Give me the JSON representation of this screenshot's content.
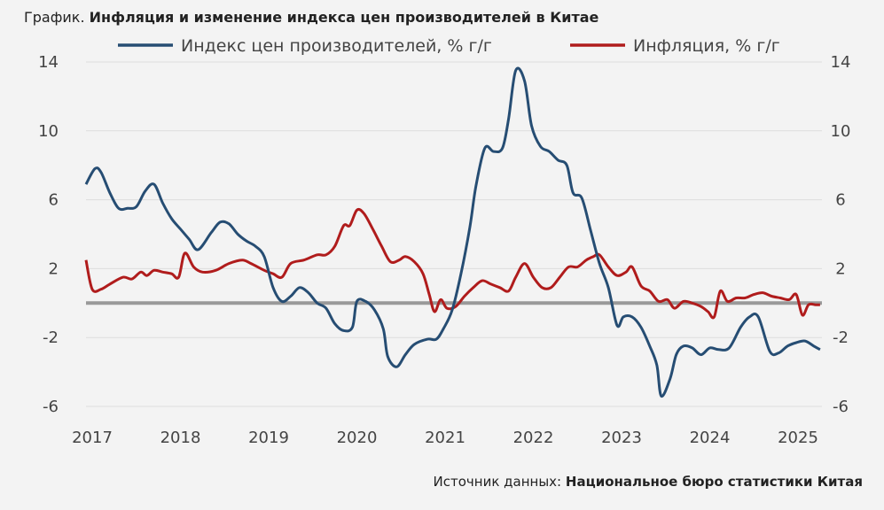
{
  "header": {
    "prefix": "График.",
    "title": "Инфляция и изменение индекса цен производителей в Китае"
  },
  "footer": {
    "prefix": "Источник данных:",
    "source": "Национальное бюро статистики Китая"
  },
  "chart_data": {
    "type": "line",
    "title": "Инфляция и изменение индекса цен производителей в Китае",
    "xlabel": "",
    "ylabel": "",
    "ylim": [
      -6,
      14
    ],
    "yticks": [
      "14",
      "10",
      "6",
      "2",
      "-2",
      "-6"
    ],
    "yticks_values": [
      14,
      10,
      6,
      2,
      -2,
      -6
    ],
    "xticks": [
      "2017",
      "2018",
      "2019",
      "2020",
      "2021",
      "2022",
      "2023",
      "2024",
      "2025"
    ],
    "xlim": [
      2016.93,
      2025.25
    ],
    "legend": "top",
    "grid": true,
    "zero_line": 0,
    "colors": {
      "ppi": "#264d73",
      "cpi": "#b01c1c",
      "zero": "#999999",
      "grid": "#dddddd"
    },
    "series": [
      {
        "name": "Индекс цен производителей, % г/г",
        "key": "ppi",
        "x": [
          2016.93,
          2017.03,
          2017.1,
          2017.2,
          2017.3,
          2017.4,
          2017.5,
          2017.6,
          2017.7,
          2017.8,
          2017.9,
          2018.0,
          2018.1,
          2018.2,
          2018.35,
          2018.45,
          2018.55,
          2018.65,
          2018.75,
          2018.85,
          2018.95,
          2019.05,
          2019.15,
          2019.25,
          2019.35,
          2019.45,
          2019.55,
          2019.65,
          2019.75,
          2019.85,
          2019.95,
          2020.0,
          2020.1,
          2020.2,
          2020.3,
          2020.35,
          2020.45,
          2020.55,
          2020.65,
          2020.8,
          2020.9,
          2020.98,
          2021.08,
          2021.18,
          2021.28,
          2021.35,
          2021.45,
          2021.55,
          2021.65,
          2021.72,
          2021.8,
          2021.9,
          2021.98,
          2022.08,
          2022.18,
          2022.28,
          2022.38,
          2022.45,
          2022.55,
          2022.65,
          2022.75,
          2022.85,
          2022.95,
          2023.02,
          2023.12,
          2023.22,
          2023.32,
          2023.4,
          2023.45,
          2023.55,
          2023.62,
          2023.7,
          2023.8,
          2023.9,
          2024.0,
          2024.1,
          2024.22,
          2024.35,
          2024.45,
          2024.55,
          2024.68,
          2024.78,
          2024.88,
          2024.98,
          2025.08,
          2025.18,
          2025.25
        ],
        "values": [
          6.9,
          7.8,
          7.6,
          6.4,
          5.5,
          5.5,
          5.6,
          6.5,
          6.9,
          5.8,
          4.9,
          4.3,
          3.7,
          3.1,
          4.1,
          4.7,
          4.6,
          4.0,
          3.6,
          3.3,
          2.7,
          0.9,
          0.1,
          0.4,
          0.9,
          0.6,
          0.0,
          -0.3,
          -1.2,
          -1.6,
          -1.4,
          0.1,
          0.1,
          -0.4,
          -1.5,
          -3.1,
          -3.7,
          -3.0,
          -2.4,
          -2.1,
          -2.1,
          -1.5,
          -0.4,
          1.7,
          4.4,
          6.8,
          9.0,
          8.8,
          9.0,
          10.7,
          13.5,
          12.9,
          10.3,
          9.1,
          8.8,
          8.3,
          8.0,
          6.4,
          6.1,
          4.2,
          2.3,
          0.9,
          -1.3,
          -0.8,
          -0.8,
          -1.4,
          -2.5,
          -3.6,
          -5.4,
          -4.4,
          -3.0,
          -2.5,
          -2.6,
          -3.0,
          -2.6,
          -2.7,
          -2.6,
          -1.4,
          -0.8,
          -0.8,
          -2.8,
          -2.9,
          -2.5,
          -2.3,
          -2.2,
          -2.5,
          -2.7
        ]
      },
      {
        "name": "Инфляция, % г/г",
        "key": "cpi",
        "x": [
          2016.93,
          2017.0,
          2017.1,
          2017.2,
          2017.35,
          2017.45,
          2017.55,
          2017.62,
          2017.7,
          2017.8,
          2017.9,
          2017.98,
          2018.05,
          2018.15,
          2018.25,
          2018.4,
          2018.55,
          2018.7,
          2018.8,
          2018.95,
          2019.05,
          2019.15,
          2019.25,
          2019.4,
          2019.55,
          2019.65,
          2019.75,
          2019.85,
          2019.92,
          2020.0,
          2020.08,
          2020.18,
          2020.28,
          2020.38,
          2020.48,
          2020.55,
          2020.65,
          2020.75,
          2020.82,
          2020.88,
          2020.95,
          2021.02,
          2021.12,
          2021.22,
          2021.32,
          2021.42,
          2021.52,
          2021.62,
          2021.72,
          2021.8,
          2021.9,
          2022.0,
          2022.1,
          2022.2,
          2022.3,
          2022.4,
          2022.5,
          2022.6,
          2022.68,
          2022.75,
          2022.85,
          2022.95,
          2023.05,
          2023.12,
          2023.22,
          2023.32,
          2023.42,
          2023.52,
          2023.6,
          2023.7,
          2023.8,
          2023.9,
          2023.98,
          2024.05,
          2024.12,
          2024.2,
          2024.3,
          2024.4,
          2024.5,
          2024.6,
          2024.7,
          2024.8,
          2024.9,
          2024.98,
          2025.05,
          2025.12,
          2025.2,
          2025.25
        ],
        "values": [
          2.5,
          0.8,
          0.8,
          1.1,
          1.5,
          1.4,
          1.8,
          1.6,
          1.9,
          1.8,
          1.7,
          1.5,
          2.9,
          2.1,
          1.8,
          1.9,
          2.3,
          2.5,
          2.3,
          1.9,
          1.7,
          1.5,
          2.3,
          2.5,
          2.8,
          2.8,
          3.3,
          4.5,
          4.5,
          5.4,
          5.2,
          4.3,
          3.3,
          2.4,
          2.5,
          2.7,
          2.4,
          1.7,
          0.5,
          -0.5,
          0.2,
          -0.3,
          -0.2,
          0.4,
          0.9,
          1.3,
          1.1,
          0.9,
          0.7,
          1.5,
          2.3,
          1.5,
          0.9,
          0.9,
          1.5,
          2.1,
          2.1,
          2.5,
          2.7,
          2.8,
          2.1,
          1.6,
          1.8,
          2.1,
          1.0,
          0.7,
          0.1,
          0.2,
          -0.3,
          0.1,
          0.0,
          -0.2,
          -0.5,
          -0.8,
          0.7,
          0.1,
          0.3,
          0.3,
          0.5,
          0.6,
          0.4,
          0.3,
          0.2,
          0.5,
          -0.7,
          -0.1,
          -0.1,
          -0.1
        ]
      }
    ]
  }
}
